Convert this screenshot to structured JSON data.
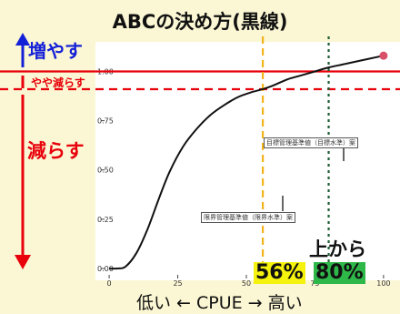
{
  "title": "ABCの決め方(黒線)",
  "zones": {
    "increase": "増やす",
    "slight_decrease": "やや減らす",
    "decrease": "減らす"
  },
  "annotations": {
    "target": "目標管理基準値（目標水準）案",
    "limit": "限界管理基準値（限界水準）案",
    "from_top": "上から"
  },
  "percentiles": {
    "p56": "56%",
    "p80": "80%"
  },
  "xlabel": "低い ← CPUE → 高い",
  "colors": {
    "background": "#fbf6d3",
    "red": "#e8000a",
    "blue": "#1420d8",
    "orange": "#f2b31c",
    "green": "#1d5e33",
    "highlight": "#f5f20e",
    "highlight_green": "#2fb84a",
    "point": "#d9506b"
  },
  "chart_data": {
    "type": "line",
    "title": "ABCの決め方(黒線)",
    "xlabel": "低い ← CPUE → 高い",
    "x_ticks": [
      "0",
      "25",
      "50",
      "75",
      "100"
    ],
    "y_ticks": [
      "0.00",
      "0.25",
      "0.50",
      "0.75",
      "1.00"
    ],
    "xlim": [
      -5,
      106
    ],
    "ylim": [
      -0.06,
      1.15
    ],
    "series": [
      {
        "x": [
          0,
          3,
          6,
          10,
          14,
          18,
          22,
          27,
          32,
          37,
          42,
          47,
          52,
          56,
          60,
          65,
          70,
          75,
          80,
          85,
          90,
          95,
          100
        ],
        "y": [
          0.0,
          0.0,
          0.01,
          0.08,
          0.2,
          0.35,
          0.49,
          0.62,
          0.71,
          0.78,
          0.83,
          0.87,
          0.895,
          0.91,
          0.93,
          0.96,
          0.98,
          1.0,
          1.02,
          1.035,
          1.05,
          1.065,
          1.08
        ]
      }
    ],
    "end_point": {
      "x": 100,
      "y": 1.08
    },
    "vlines": [
      {
        "x": 56,
        "color": "#f2b31c",
        "style": "dashed"
      },
      {
        "x": 80,
        "color": "#1d5e33",
        "style": "dotted"
      }
    ],
    "hlines": [
      {
        "y": 1.0,
        "color": "#e8000a",
        "style": "solid"
      },
      {
        "y": 0.91,
        "color": "#e8000a",
        "style": "dashed"
      }
    ]
  }
}
